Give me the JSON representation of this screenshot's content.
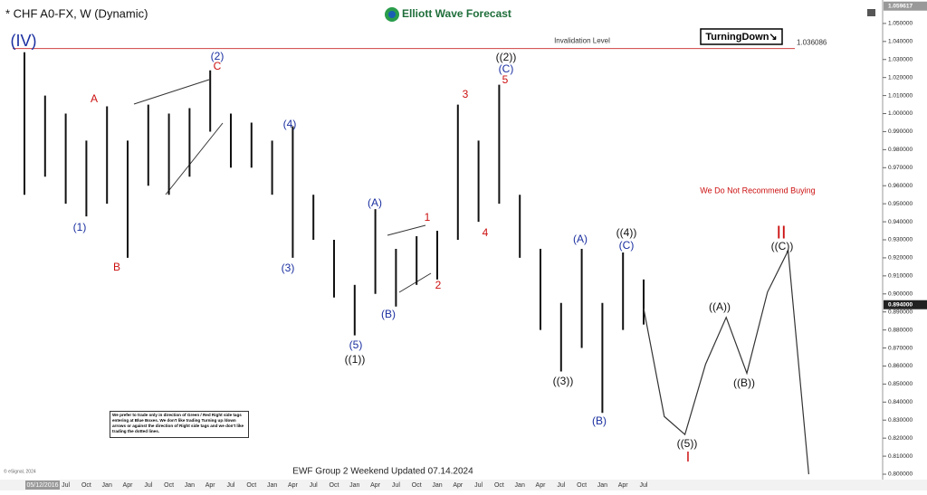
{
  "chart_data": {
    "type": "range-bar",
    "title": "* CHF A0-FX, W (Dynamic)",
    "brand": "Elliott Wave Forecast",
    "categories": [
      null,
      null,
      "Jul",
      "Oct",
      "Jan",
      "Apr",
      "Jul",
      "Oct",
      "Jan",
      "Apr",
      "Jul",
      "Oct",
      "Jan",
      "Apr",
      "Jul",
      "Oct",
      "Jan",
      "Apr",
      "Jul",
      "Oct",
      "Jan",
      "Apr",
      "Jul",
      "Oct",
      "Jan",
      "Apr",
      "Jul",
      "Oct",
      "Jan",
      "Apr",
      "Jul",
      null,
      null,
      null,
      null,
      null,
      null,
      null,
      null
    ],
    "high": [
      1.034,
      1.01,
      1.0,
      0.985,
      1.004,
      0.985,
      1.005,
      1.0,
      1.003,
      1.024,
      1.0,
      0.995,
      0.985,
      0.993,
      0.955,
      0.93,
      0.905,
      0.947,
      0.925,
      0.932,
      0.935,
      1.005,
      0.985,
      1.016,
      0.955,
      0.925,
      0.895,
      0.925,
      0.895,
      0.923,
      0.908,
      null,
      null,
      null,
      null,
      null,
      null,
      null,
      null
    ],
    "low": [
      0.955,
      0.965,
      0.95,
      0.943,
      0.95,
      0.92,
      0.96,
      0.955,
      0.965,
      0.99,
      0.97,
      0.97,
      0.955,
      0.92,
      0.93,
      0.898,
      0.877,
      0.9,
      0.893,
      0.905,
      0.908,
      0.93,
      0.94,
      0.95,
      0.92,
      0.88,
      0.857,
      0.87,
      0.834,
      0.88,
      0.883,
      null,
      null,
      null,
      null,
      null,
      null,
      null,
      null
    ],
    "projection": [
      null,
      null,
      null,
      null,
      null,
      null,
      null,
      null,
      null,
      null,
      null,
      null,
      null,
      null,
      null,
      null,
      null,
      null,
      null,
      null,
      null,
      null,
      null,
      null,
      null,
      null,
      null,
      null,
      null,
      null,
      0.892,
      0.832,
      0.822,
      0.861,
      0.887,
      0.856,
      0.901,
      0.924,
      0.8
    ],
    "bar_color": "#111111",
    "projection_color": "#333333",
    "ylim": [
      0.797,
      1.063
    ],
    "yticks": [
      {
        "value": 0.8,
        "label": "0.800000"
      },
      {
        "value": 0.81,
        "label": "0.810000"
      },
      {
        "value": 0.82,
        "label": "0.820000"
      },
      {
        "value": 0.83,
        "label": "0.830000"
      },
      {
        "value": 0.84,
        "label": "0.840000"
      },
      {
        "value": 0.85,
        "label": "0.850000"
      },
      {
        "value": 0.86,
        "label": "0.860000"
      },
      {
        "value": 0.87,
        "label": "0.870000"
      },
      {
        "value": 0.88,
        "label": "0.880000"
      },
      {
        "value": 0.89,
        "label": "0.890000"
      },
      {
        "value": 0.9,
        "label": "0.900000"
      },
      {
        "value": 0.91,
        "label": "0.910000"
      },
      {
        "value": 0.92,
        "label": "0.920000"
      },
      {
        "value": 0.93,
        "label": "0.930000"
      },
      {
        "value": 0.94,
        "label": "0.940000"
      },
      {
        "value": 0.95,
        "label": "0.950000"
      },
      {
        "value": 0.96,
        "label": "0.960000"
      },
      {
        "value": 0.97,
        "label": "0.970000"
      },
      {
        "value": 0.98,
        "label": "0.980000"
      },
      {
        "value": 0.99,
        "label": "0.990000"
      },
      {
        "value": 1.0,
        "label": "1.000000"
      },
      {
        "value": 1.01,
        "label": "1.010000"
      },
      {
        "value": 1.02,
        "label": "1.020000"
      },
      {
        "value": 1.03,
        "label": "1.030000"
      },
      {
        "value": 1.04,
        "label": "1.040000"
      },
      {
        "value": 1.05,
        "label": "1.050000"
      }
    ],
    "top_price": {
      "value": 1.059617,
      "label": "1.059617"
    },
    "last_price": {
      "value": 0.894,
      "label": "0.894000"
    },
    "invalidation": {
      "label": "Invalidation Level",
      "value": 1.036086,
      "color": "#d04040"
    },
    "date_label": "05/12/2016",
    "signal": "TurningDown↘",
    "warning": "We Do Not Recommend Buying",
    "footer": "EWF Group 2 Weekend Updated 07.14.2024",
    "copyright": "© eSignal, 2024",
    "note": "We prefer to trade only in direction of Green / Red Right side tags entering at Blue Boxes. We don't like trading Turning up /down arrows or against the direction of Right side tags and we don't like trading the dotted lines.",
    "waves": [
      {
        "text": "(IV)",
        "color": "#1a2fa0"
      },
      {
        "text": "(1)",
        "color": "#1a2fa0"
      },
      {
        "text": "A",
        "color": "#cc1010"
      },
      {
        "text": "B",
        "color": "#cc1010"
      },
      {
        "text": "(2)",
        "color": "#1a2fa0"
      },
      {
        "text": "C",
        "color": "#cc1010"
      },
      {
        "text": "(4)",
        "color": "#1a2fa0"
      },
      {
        "text": "(3)",
        "color": "#1a2fa0"
      },
      {
        "text": "(A)",
        "color": "#1a2fa0"
      },
      {
        "text": "(B)",
        "color": "#1a2fa0"
      },
      {
        "text": "(5)",
        "color": "#1a2fa0"
      },
      {
        "text": "((1))",
        "color": "#111111"
      },
      {
        "text": "1",
        "color": "#cc1010"
      },
      {
        "text": "2",
        "color": "#cc1010"
      },
      {
        "text": "3",
        "color": "#cc1010"
      },
      {
        "text": "4",
        "color": "#cc1010"
      },
      {
        "text": "((2))",
        "color": "#111111"
      },
      {
        "text": "(C)",
        "color": "#1a2fa0"
      },
      {
        "text": "5",
        "color": "#cc1010"
      },
      {
        "text": "((3))",
        "color": "#111111"
      },
      {
        "text": "(A)",
        "color": "#1a2fa0"
      },
      {
        "text": "(B)",
        "color": "#1a2fa0"
      },
      {
        "text": "((4))",
        "color": "#111111"
      },
      {
        "text": "(C)",
        "color": "#1a2fa0"
      },
      {
        "text": "((5))",
        "color": "#111111"
      },
      {
        "text": "I",
        "color": "#cc1010"
      },
      {
        "text": "((A))",
        "color": "#111111"
      },
      {
        "text": "((B))",
        "color": "#111111"
      },
      {
        "text": "II",
        "color": "#cc1010"
      },
      {
        "text": "((C))",
        "color": "#111111"
      }
    ]
  }
}
